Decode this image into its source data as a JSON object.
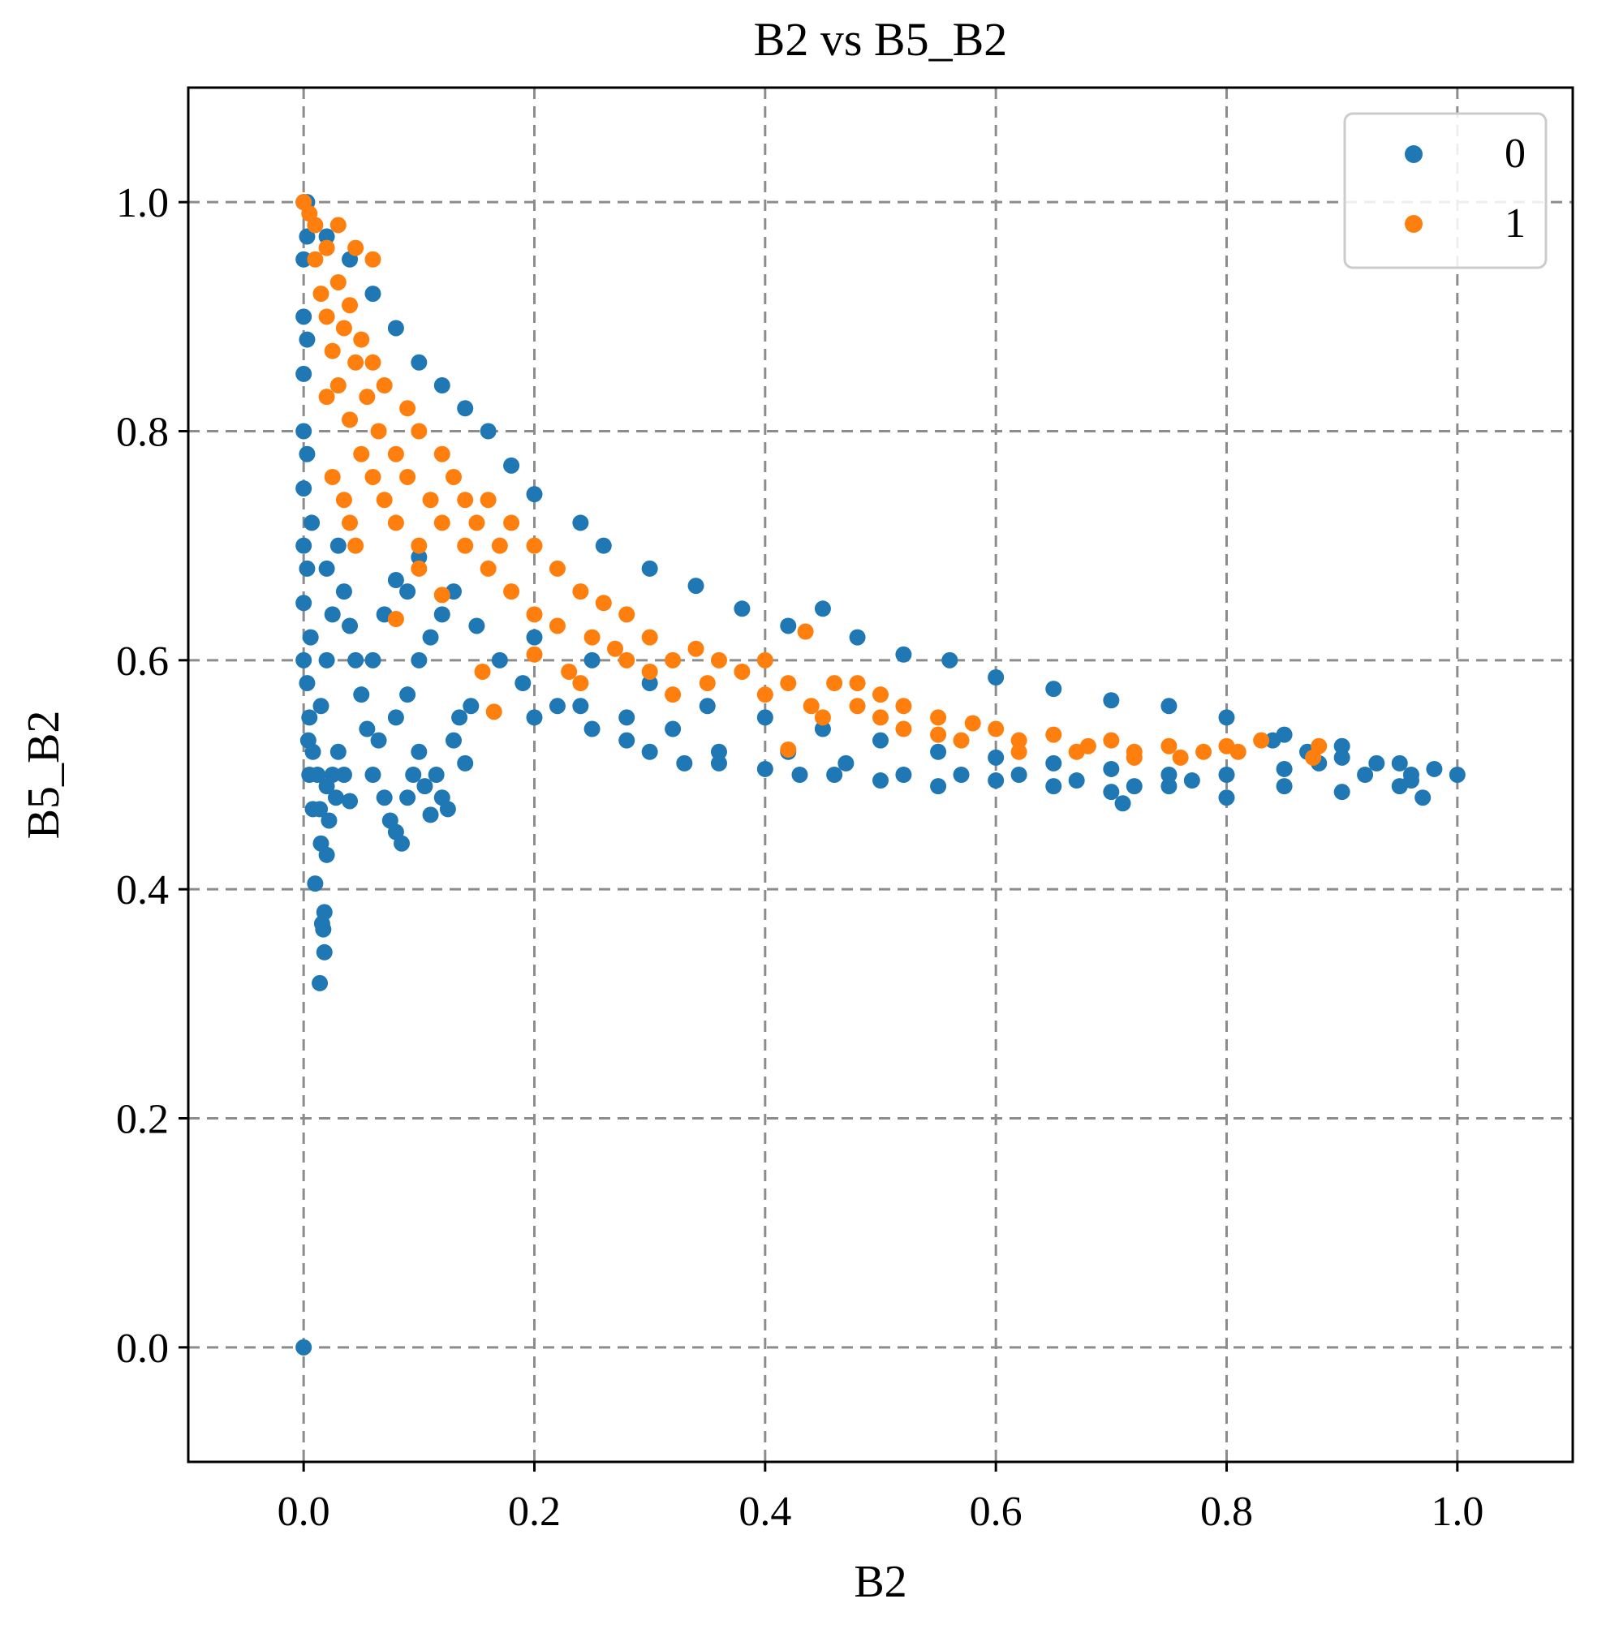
{
  "chart_data": {
    "type": "scatter",
    "title": "B2 vs B5_B2",
    "xlabel": "B2",
    "ylabel": "B5_B2",
    "xlim": [
      -0.1,
      1.1
    ],
    "ylim": [
      -0.1,
      1.1
    ],
    "xticks": [
      0.0,
      0.2,
      0.4,
      0.6,
      0.8,
      1.0
    ],
    "yticks": [
      0.0,
      0.2,
      0.4,
      0.6,
      0.8,
      1.0
    ],
    "xtick_labels": [
      "0.0",
      "0.2",
      "0.4",
      "0.6",
      "0.8",
      "1.0"
    ],
    "ytick_labels": [
      "0.0",
      "0.2",
      "0.4",
      "0.6",
      "0.8",
      "1.0"
    ],
    "grid": true,
    "grid_style": "dashed",
    "legend_position": "top-right",
    "series": [
      {
        "name": "0",
        "color": "#1f77b4",
        "points": [
          [
            0.0,
            0.0
          ],
          [
            0.0,
            1.0
          ],
          [
            0.0,
            0.95
          ],
          [
            0.0,
            0.9
          ],
          [
            0.0,
            0.85
          ],
          [
            0.0,
            0.8
          ],
          [
            0.0,
            0.75
          ],
          [
            0.0,
            0.7
          ],
          [
            0.0,
            0.65
          ],
          [
            0.0,
            0.6
          ],
          [
            0.003,
            0.97
          ],
          [
            0.003,
            0.88
          ],
          [
            0.003,
            0.78
          ],
          [
            0.003,
            0.68
          ],
          [
            0.003,
            0.58
          ],
          [
            0.004,
            0.53
          ],
          [
            0.005,
            0.5
          ],
          [
            0.005,
            0.55
          ],
          [
            0.006,
            0.62
          ],
          [
            0.007,
            0.72
          ],
          [
            0.008,
            0.47
          ],
          [
            0.008,
            0.52
          ],
          [
            0.01,
            0.405
          ],
          [
            0.012,
            0.5
          ],
          [
            0.014,
            0.47
          ],
          [
            0.015,
            0.44
          ],
          [
            0.016,
            0.37
          ],
          [
            0.017,
            0.365
          ],
          [
            0.018,
            0.38
          ],
          [
            0.018,
            0.345
          ],
          [
            0.014,
            0.318
          ],
          [
            0.02,
            0.43
          ],
          [
            0.022,
            0.46
          ],
          [
            0.02,
            0.49
          ],
          [
            0.025,
            0.5
          ],
          [
            0.028,
            0.48
          ],
          [
            0.03,
            0.52
          ],
          [
            0.035,
            0.5
          ],
          [
            0.04,
            0.477
          ],
          [
            0.015,
            0.56
          ],
          [
            0.02,
            0.6
          ],
          [
            0.025,
            0.64
          ],
          [
            0.02,
            0.68
          ],
          [
            0.03,
            0.7
          ],
          [
            0.035,
            0.66
          ],
          [
            0.04,
            0.63
          ],
          [
            0.045,
            0.6
          ],
          [
            0.05,
            0.57
          ],
          [
            0.055,
            0.54
          ],
          [
            0.06,
            0.5
          ],
          [
            0.065,
            0.53
          ],
          [
            0.07,
            0.48
          ],
          [
            0.075,
            0.46
          ],
          [
            0.08,
            0.45
          ],
          [
            0.085,
            0.44
          ],
          [
            0.09,
            0.48
          ],
          [
            0.095,
            0.5
          ],
          [
            0.1,
            0.52
          ],
          [
            0.105,
            0.49
          ],
          [
            0.11,
            0.465
          ],
          [
            0.115,
            0.5
          ],
          [
            0.12,
            0.48
          ],
          [
            0.125,
            0.47
          ],
          [
            0.13,
            0.53
          ],
          [
            0.135,
            0.55
          ],
          [
            0.14,
            0.51
          ],
          [
            0.145,
            0.56
          ],
          [
            0.08,
            0.55
          ],
          [
            0.09,
            0.57
          ],
          [
            0.1,
            0.6
          ],
          [
            0.11,
            0.62
          ],
          [
            0.06,
            0.6
          ],
          [
            0.07,
            0.64
          ],
          [
            0.08,
            0.67
          ],
          [
            0.09,
            0.66
          ],
          [
            0.1,
            0.69
          ],
          [
            0.12,
            0.64
          ],
          [
            0.13,
            0.66
          ],
          [
            0.15,
            0.63
          ],
          [
            0.17,
            0.6
          ],
          [
            0.19,
            0.58
          ],
          [
            0.2,
            0.55
          ],
          [
            0.22,
            0.56
          ],
          [
            0.25,
            0.54
          ],
          [
            0.28,
            0.53
          ],
          [
            0.3,
            0.52
          ],
          [
            0.33,
            0.51
          ],
          [
            0.36,
            0.51
          ],
          [
            0.4,
            0.505
          ],
          [
            0.43,
            0.5
          ],
          [
            0.46,
            0.5
          ],
          [
            0.5,
            0.495
          ],
          [
            0.55,
            0.49
          ],
          [
            0.6,
            0.495
          ],
          [
            0.65,
            0.49
          ],
          [
            0.7,
            0.485
          ],
          [
            0.71,
            0.475
          ],
          [
            0.75,
            0.49
          ],
          [
            0.8,
            0.48
          ],
          [
            0.85,
            0.49
          ],
          [
            0.9,
            0.485
          ],
          [
            0.95,
            0.49
          ],
          [
            0.97,
            0.48
          ],
          [
            1.0,
            0.5
          ],
          [
            0.003,
            1.0
          ],
          [
            0.02,
            0.97
          ],
          [
            0.04,
            0.95
          ],
          [
            0.06,
            0.92
          ],
          [
            0.08,
            0.89
          ],
          [
            0.1,
            0.86
          ],
          [
            0.12,
            0.84
          ],
          [
            0.14,
            0.82
          ],
          [
            0.16,
            0.8
          ],
          [
            0.18,
            0.77
          ],
          [
            0.2,
            0.745
          ],
          [
            0.24,
            0.72
          ],
          [
            0.26,
            0.7
          ],
          [
            0.3,
            0.68
          ],
          [
            0.34,
            0.665
          ],
          [
            0.38,
            0.645
          ],
          [
            0.42,
            0.63
          ],
          [
            0.45,
            0.645
          ],
          [
            0.48,
            0.62
          ],
          [
            0.52,
            0.605
          ],
          [
            0.56,
            0.6
          ],
          [
            0.6,
            0.585
          ],
          [
            0.65,
            0.575
          ],
          [
            0.7,
            0.565
          ],
          [
            0.75,
            0.56
          ],
          [
            0.8,
            0.55
          ],
          [
            0.85,
            0.535
          ],
          [
            0.9,
            0.525
          ],
          [
            0.95,
            0.51
          ],
          [
            0.98,
            0.505
          ],
          [
            0.2,
            0.62
          ],
          [
            0.25,
            0.6
          ],
          [
            0.3,
            0.58
          ],
          [
            0.35,
            0.56
          ],
          [
            0.4,
            0.55
          ],
          [
            0.45,
            0.54
          ],
          [
            0.5,
            0.53
          ],
          [
            0.55,
            0.52
          ],
          [
            0.6,
            0.515
          ],
          [
            0.65,
            0.51
          ],
          [
            0.7,
            0.505
          ],
          [
            0.75,
            0.5
          ],
          [
            0.8,
            0.5
          ],
          [
            0.85,
            0.505
          ],
          [
            0.88,
            0.51
          ],
          [
            0.92,
            0.5
          ],
          [
            0.96,
            0.495
          ],
          [
            0.84,
            0.53
          ],
          [
            0.87,
            0.52
          ],
          [
            0.9,
            0.515
          ],
          [
            0.93,
            0.51
          ],
          [
            0.96,
            0.5
          ],
          [
            0.24,
            0.56
          ],
          [
            0.28,
            0.55
          ],
          [
            0.32,
            0.54
          ],
          [
            0.36,
            0.52
          ],
          [
            0.42,
            0.52
          ],
          [
            0.47,
            0.51
          ],
          [
            0.52,
            0.5
          ],
          [
            0.57,
            0.5
          ],
          [
            0.62,
            0.5
          ],
          [
            0.67,
            0.495
          ],
          [
            0.72,
            0.49
          ],
          [
            0.77,
            0.495
          ]
        ]
      },
      {
        "name": "1",
        "color": "#ff7f0e",
        "points": [
          [
            0.0,
            1.0
          ],
          [
            0.005,
            0.99
          ],
          [
            0.01,
            0.98
          ],
          [
            0.01,
            0.95
          ],
          [
            0.015,
            0.92
          ],
          [
            0.02,
            0.96
          ],
          [
            0.02,
            0.9
          ],
          [
            0.025,
            0.87
          ],
          [
            0.03,
            0.93
          ],
          [
            0.03,
            0.84
          ],
          [
            0.035,
            0.89
          ],
          [
            0.04,
            0.81
          ],
          [
            0.04,
            0.91
          ],
          [
            0.045,
            0.86
          ],
          [
            0.05,
            0.78
          ],
          [
            0.05,
            0.88
          ],
          [
            0.055,
            0.83
          ],
          [
            0.06,
            0.76
          ],
          [
            0.06,
            0.86
          ],
          [
            0.065,
            0.8
          ],
          [
            0.07,
            0.74
          ],
          [
            0.07,
            0.84
          ],
          [
            0.08,
            0.78
          ],
          [
            0.08,
            0.72
          ],
          [
            0.09,
            0.82
          ],
          [
            0.09,
            0.76
          ],
          [
            0.1,
            0.7
          ],
          [
            0.1,
            0.8
          ],
          [
            0.11,
            0.74
          ],
          [
            0.12,
            0.78
          ],
          [
            0.12,
            0.72
          ],
          [
            0.13,
            0.76
          ],
          [
            0.14,
            0.7
          ],
          [
            0.14,
            0.74
          ],
          [
            0.15,
            0.72
          ],
          [
            0.16,
            0.68
          ],
          [
            0.16,
            0.74
          ],
          [
            0.17,
            0.7
          ],
          [
            0.18,
            0.72
          ],
          [
            0.18,
            0.66
          ],
          [
            0.2,
            0.7
          ],
          [
            0.2,
            0.64
          ],
          [
            0.22,
            0.68
          ],
          [
            0.22,
            0.63
          ],
          [
            0.24,
            0.66
          ],
          [
            0.25,
            0.62
          ],
          [
            0.26,
            0.65
          ],
          [
            0.28,
            0.6
          ],
          [
            0.28,
            0.64
          ],
          [
            0.3,
            0.62
          ],
          [
            0.3,
            0.59
          ],
          [
            0.32,
            0.6
          ],
          [
            0.34,
            0.61
          ],
          [
            0.35,
            0.58
          ],
          [
            0.36,
            0.6
          ],
          [
            0.38,
            0.59
          ],
          [
            0.4,
            0.57
          ],
          [
            0.4,
            0.6
          ],
          [
            0.42,
            0.58
          ],
          [
            0.435,
            0.625
          ],
          [
            0.44,
            0.56
          ],
          [
            0.46,
            0.58
          ],
          [
            0.48,
            0.56
          ],
          [
            0.5,
            0.57
          ],
          [
            0.5,
            0.55
          ],
          [
            0.52,
            0.56
          ],
          [
            0.55,
            0.55
          ],
          [
            0.55,
            0.535
          ],
          [
            0.58,
            0.545
          ],
          [
            0.6,
            0.54
          ],
          [
            0.62,
            0.53
          ],
          [
            0.65,
            0.535
          ],
          [
            0.68,
            0.525
          ],
          [
            0.7,
            0.53
          ],
          [
            0.72,
            0.52
          ],
          [
            0.75,
            0.525
          ],
          [
            0.78,
            0.52
          ],
          [
            0.8,
            0.525
          ],
          [
            0.83,
            0.53
          ],
          [
            0.875,
            0.515
          ],
          [
            0.88,
            0.525
          ],
          [
            0.02,
            0.83
          ],
          [
            0.025,
            0.76
          ],
          [
            0.035,
            0.74
          ],
          [
            0.04,
            0.72
          ],
          [
            0.045,
            0.7
          ],
          [
            0.08,
            0.636
          ],
          [
            0.1,
            0.68
          ],
          [
            0.12,
            0.657
          ],
          [
            0.155,
            0.59
          ],
          [
            0.165,
            0.555
          ],
          [
            0.2,
            0.605
          ],
          [
            0.23,
            0.59
          ],
          [
            0.24,
            0.58
          ],
          [
            0.27,
            0.61
          ],
          [
            0.32,
            0.57
          ],
          [
            0.42,
            0.522
          ],
          [
            0.45,
            0.55
          ],
          [
            0.48,
            0.58
          ],
          [
            0.52,
            0.54
          ],
          [
            0.57,
            0.53
          ],
          [
            0.62,
            0.52
          ],
          [
            0.67,
            0.52
          ],
          [
            0.72,
            0.515
          ],
          [
            0.76,
            0.515
          ],
          [
            0.81,
            0.52
          ],
          [
            0.06,
            0.95
          ],
          [
            0.03,
            0.98
          ],
          [
            0.045,
            0.96
          ]
        ]
      }
    ]
  }
}
